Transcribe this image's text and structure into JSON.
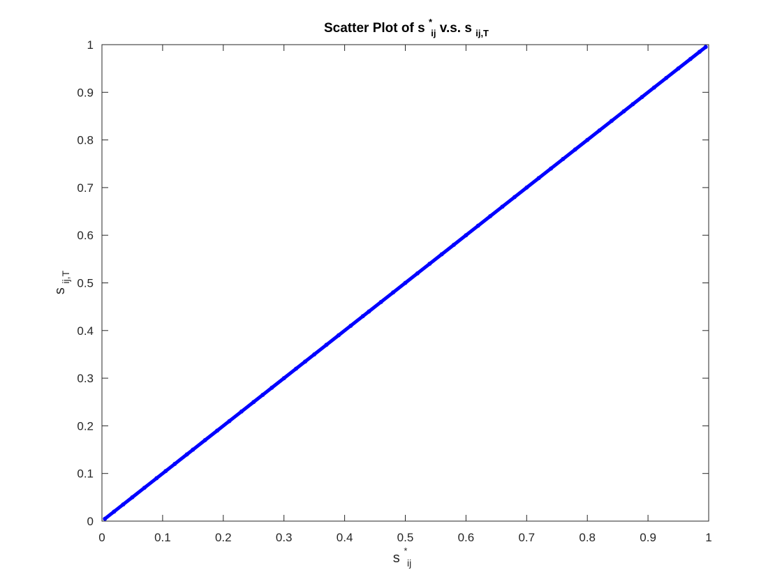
{
  "chart_data": {
    "type": "scatter",
    "title": {
      "prefix": "Scatter Plot of ",
      "x_symbol": {
        "base": "s",
        "sup": "*",
        "sub": "ij"
      },
      "middle": " v.s. ",
      "y_symbol": {
        "base": "s",
        "sub": "ij,T"
      }
    },
    "xlabel": {
      "base": "s",
      "sup": "*",
      "sub": "ij"
    },
    "ylabel": {
      "base": "s",
      "sub": "ij,T"
    },
    "xlim": [
      0,
      1
    ],
    "ylim": [
      0,
      1
    ],
    "xticks": [
      0,
      0.1,
      0.2,
      0.3,
      0.4,
      0.5,
      0.6,
      0.7,
      0.8,
      0.9,
      1
    ],
    "yticks": [
      0,
      0.1,
      0.2,
      0.3,
      0.4,
      0.5,
      0.6,
      0.7,
      0.8,
      0.9,
      1
    ],
    "xtick_labels": [
      "0",
      "0.1",
      "0.2",
      "0.3",
      "0.4",
      "0.5",
      "0.6",
      "0.7",
      "0.8",
      "0.9",
      "1"
    ],
    "ytick_labels": [
      "0",
      "0.1",
      "0.2",
      "0.3",
      "0.4",
      "0.5",
      "0.6",
      "0.7",
      "0.8",
      "0.9",
      "1"
    ],
    "grid": false,
    "marker_color": "#0000ff",
    "series": [
      {
        "x": [
          0.005,
          0.02,
          0.035,
          0.05,
          0.07,
          0.09,
          0.105,
          0.12,
          0.14,
          0.15,
          0.17,
          0.19,
          0.21,
          0.23,
          0.25,
          0.265,
          0.28,
          0.3,
          0.32,
          0.335,
          0.35,
          0.37,
          0.39,
          0.41,
          0.43,
          0.44,
          0.46,
          0.48,
          0.5,
          0.52,
          0.54,
          0.56,
          0.58,
          0.6,
          0.62,
          0.64,
          0.66,
          0.68,
          0.7,
          0.72,
          0.74,
          0.76,
          0.78,
          0.8,
          0.82,
          0.84,
          0.86,
          0.875,
          0.89,
          0.91,
          0.93,
          0.95,
          0.97,
          0.985,
          0.995
        ],
        "y": [
          0.005,
          0.02,
          0.035,
          0.05,
          0.07,
          0.09,
          0.105,
          0.12,
          0.14,
          0.15,
          0.17,
          0.19,
          0.21,
          0.23,
          0.25,
          0.265,
          0.28,
          0.3,
          0.32,
          0.335,
          0.35,
          0.37,
          0.39,
          0.41,
          0.43,
          0.44,
          0.46,
          0.48,
          0.5,
          0.52,
          0.54,
          0.56,
          0.58,
          0.6,
          0.62,
          0.64,
          0.66,
          0.68,
          0.7,
          0.72,
          0.74,
          0.76,
          0.78,
          0.8,
          0.82,
          0.84,
          0.86,
          0.875,
          0.89,
          0.91,
          0.93,
          0.95,
          0.97,
          0.985,
          0.995
        ]
      }
    ]
  }
}
